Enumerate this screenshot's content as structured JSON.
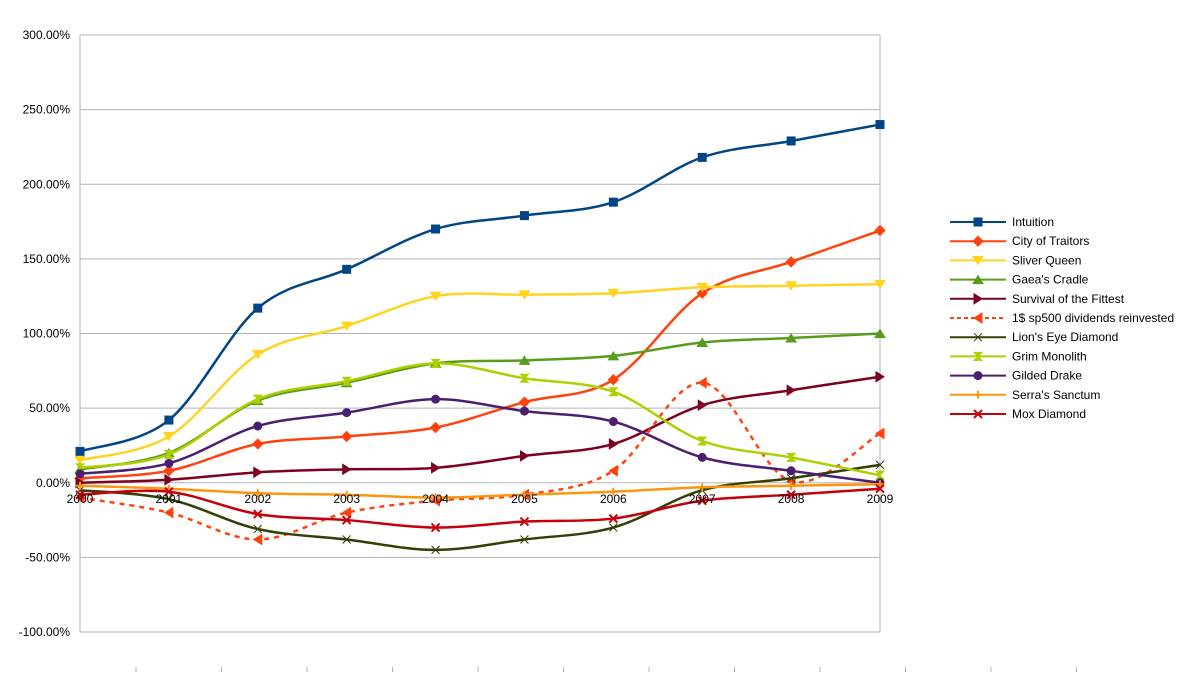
{
  "chart_data": {
    "type": "line",
    "title": "",
    "xlabel": "",
    "ylabel": "",
    "categories": [
      "2000",
      "2001",
      "2002",
      "2003",
      "2004",
      "2005",
      "2006",
      "2007",
      "2008",
      "2009"
    ],
    "ylim": [
      -100,
      300
    ],
    "y_ticks": [
      "300.00%",
      "250.00%",
      "200.00%",
      "150.00%",
      "100.00%",
      "50.00%",
      "0.00%",
      "-50.00%",
      "-100.00%"
    ],
    "grid": "horizontal",
    "legend_position": "right",
    "smooth": true,
    "series": [
      {
        "name": "Intuition",
        "color": "#004586",
        "marker": "square",
        "dashed": false,
        "values": [
          21,
          42,
          117,
          143,
          170,
          179,
          188,
          218,
          229,
          240
        ]
      },
      {
        "name": "City of Traitors",
        "color": "#ff420e",
        "marker": "diamond",
        "dashed": false,
        "values": [
          3,
          8,
          26,
          31,
          37,
          54,
          69,
          127,
          148,
          169
        ]
      },
      {
        "name": "Sliver Queen",
        "color": "#ffd320",
        "marker": "triangle-down",
        "dashed": false,
        "values": [
          15,
          31,
          86,
          105,
          125,
          126,
          127,
          131,
          132,
          133
        ]
      },
      {
        "name": "Gaea's Cradle",
        "color": "#579d1c",
        "marker": "triangle-up",
        "dashed": false,
        "values": [
          9,
          20,
          55,
          67,
          80,
          82,
          85,
          94,
          97,
          100
        ]
      },
      {
        "name": "Survival of the Fittest",
        "color": "#7e0021",
        "marker": "triangle-right",
        "dashed": false,
        "values": [
          0,
          2,
          7,
          9,
          10,
          18,
          26,
          52,
          62,
          71
        ]
      },
      {
        "name": "1$ sp500 dividends reinvested",
        "color": "#ff420e",
        "marker": "triangle-left",
        "dashed": true,
        "values": [
          -10,
          -20,
          -38,
          -20,
          -12,
          -8,
          8,
          67,
          1,
          33
        ]
      },
      {
        "name": "Lion's Eye Diamond",
        "color": "#314004",
        "marker": "bowtie",
        "dashed": false,
        "values": [
          -5,
          -11,
          -31,
          -38,
          -45,
          -38,
          -30,
          -5,
          3,
          12
        ]
      },
      {
        "name": "Grim Monolith",
        "color": "#aecf00",
        "marker": "hourglass",
        "dashed": false,
        "values": [
          10,
          19,
          56,
          68,
          80,
          70,
          61,
          28,
          17,
          5
        ]
      },
      {
        "name": "Gilded Drake",
        "color": "#4b1f6f",
        "marker": "circle",
        "dashed": false,
        "values": [
          6,
          13,
          38,
          47,
          56,
          48,
          41,
          17,
          8,
          0
        ]
      },
      {
        "name": "Serra's Sanctum",
        "color": "#ff950e",
        "marker": "plus",
        "dashed": false,
        "values": [
          -2,
          -4,
          -7,
          -8,
          -10,
          -8,
          -6,
          -3,
          -2,
          -1
        ]
      },
      {
        "name": "Mox Diamond",
        "color": "#c5000b",
        "marker": "x",
        "dashed": false,
        "values": [
          -8,
          -6,
          -21,
          -25,
          -30,
          -26,
          -24,
          -12,
          -8,
          -4
        ]
      }
    ]
  }
}
